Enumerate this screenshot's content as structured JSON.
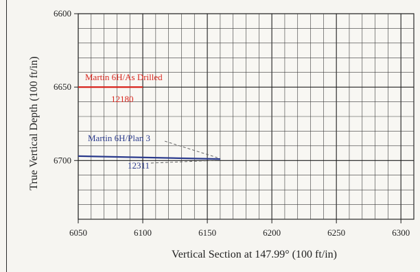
{
  "chart_data": {
    "type": "line",
    "xlabel": "Vertical Section at 147.99° (100 ft/in)",
    "ylabel": "True Vertical Depth (100 ft/in)",
    "xlim": [
      6050,
      6310
    ],
    "ylim": [
      6600,
      6740
    ],
    "y_inverted": true,
    "x_ticks": [
      6050,
      6100,
      6150,
      6200,
      6250,
      6300
    ],
    "y_ticks": [
      6600,
      6650,
      6700
    ],
    "grid": true,
    "series": [
      {
        "name": "Martin 6H/As Drilled",
        "color": "#d8261e",
        "x": [
          6050,
          6100
        ],
        "y": [
          6650,
          6650
        ],
        "md_label": "12180"
      },
      {
        "name": "Martin 6H/Plan 3",
        "color": "#2a3a8c",
        "x": [
          6050,
          6160
        ],
        "y": [
          6697,
          6699
        ],
        "md_label": "12311"
      }
    ]
  }
}
